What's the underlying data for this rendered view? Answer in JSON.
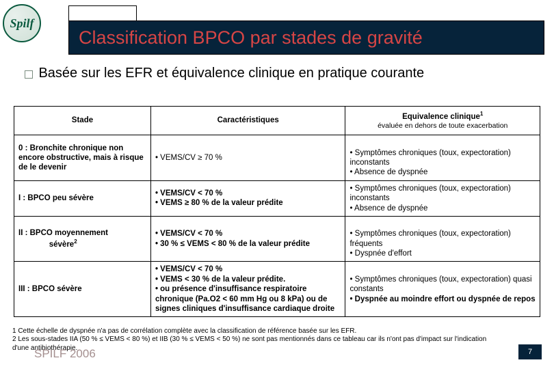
{
  "logo_text": "Spilf",
  "title": "Classification BPCO par stades de gravité",
  "subtitle": "Basée sur les EFR et équivalence clinique en pratique courante",
  "head_stade": "Stade",
  "head_carac": "Caractéristiques",
  "head_equiv": "Equivalence clinique",
  "head_equiv_sup": "1",
  "head_equiv_sub": "évaluée en dehors de toute exacerbation",
  "r0_stade": "0 : Bronchite chronique non encore obstructive, mais à risque de le devenir",
  "r0_carac": "• VEMS/CV ≥ 70 %",
  "r0_equiv": "• Symptômes chroniques (toux, expectoration) inconstants\n• Absence de dyspnée",
  "r1_stade": "I : BPCO peu sévère",
  "r1_carac": "• VEMS/CV < 70 %\n• VEMS ≥ 80 % de la valeur prédite",
  "r1_equiv": "• Symptômes chroniques (toux, expectoration) inconstants\n• Absence de dyspnée",
  "r2_stade_a": "II : BPCO moyennement",
  "r2_stade_b": "sévère",
  "r2_stade_sup": "2",
  "r2_carac": "• VEMS/CV < 70 %\n• 30 % ≤ VEMS < 80 % de la valeur prédite",
  "r2_equiv": "• Symptômes chroniques (toux, expectoration) fréquents\n• Dyspnée d'effort",
  "r3_stade": "III : BPCO sévère",
  "r3_carac": "• VEMS/CV < 70 %\n• VEMS < 30 % de la valeur prédite.\n• ou présence d'insuffisance respiratoire chronique (Pa.O2 < 60 mm Hg ou 8 kPa) ou de signes cliniques d'insuffisance cardiaque droite",
  "r3_equiv_a": "• Symptômes chroniques (toux, expectoration) quasi constants",
  "r3_equiv_b": "• Dyspnée au moindre effort ou dyspnée de repos",
  "fn1": "1 Cette échelle de dyspnée n'a pas de corrélation complète avec la classification de référence basée sur les EFR.",
  "fn2": "2 Les sous-stades IIA (50 % ≤ VEMS < 80 %) et IIB (30 % ≤ VEMS < 50 %) ne sont pas mentionnés dans ce tableau car ils n'ont pas d'impact sur l'indication d'une antibiothérapie.",
  "footer_brand": "SPILF 2006",
  "page_number": "7",
  "colors": {
    "title_bg": "#06233a",
    "title_text": "#d64545",
    "border": "#000000",
    "brand_grey": "#a48f8f",
    "logo_green": "#0b5a3f"
  }
}
